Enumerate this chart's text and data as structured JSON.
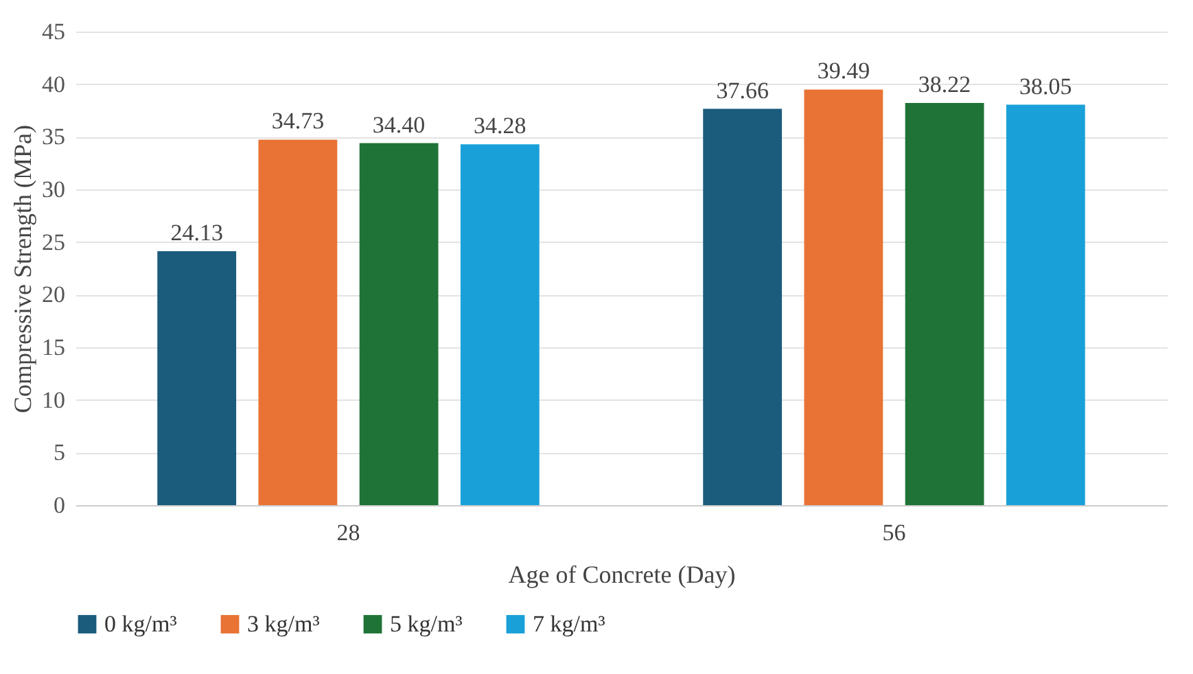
{
  "chart_data": {
    "type": "bar",
    "xlabel": "Age of Concrete (Day)",
    "ylabel": "Compressive Strength (MPa)",
    "categories": [
      "28",
      "56"
    ],
    "series": [
      {
        "name": "0 kg/m³",
        "color": "#1b5c7d",
        "values": [
          24.13,
          37.66
        ],
        "value_labels": [
          "24.13",
          "37.66"
        ]
      },
      {
        "name": "3 kg/m³",
        "color": "#e87335",
        "values": [
          34.73,
          39.49
        ],
        "value_labels": [
          "34.73",
          "39.49"
        ]
      },
      {
        "name": "5 kg/m³",
        "color": "#1f7337",
        "values": [
          34.4,
          38.22
        ],
        "value_labels": [
          "34.40",
          "38.22"
        ]
      },
      {
        "name": "7 kg/m³",
        "color": "#1aa0d8",
        "values": [
          34.28,
          38.05
        ],
        "value_labels": [
          "34.28",
          "38.05"
        ]
      }
    ],
    "ylim": [
      0,
      45
    ],
    "yticks": [
      0,
      5,
      10,
      15,
      20,
      25,
      30,
      35,
      40,
      45
    ],
    "grid": "y",
    "legend": "bottom"
  }
}
